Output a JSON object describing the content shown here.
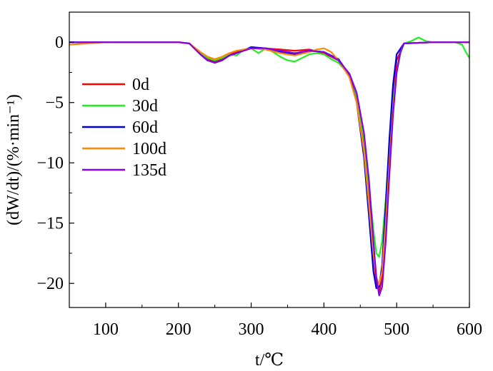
{
  "chart_data": {
    "type": "line",
    "xlabel": "t/℃",
    "ylabel": "(dW/dt)/(%·min⁻¹)",
    "xlim": [
      50,
      600
    ],
    "ylim": [
      -22,
      2.5
    ],
    "xticks": [
      100,
      200,
      300,
      400,
      500,
      600
    ],
    "yticks": [
      0,
      -5,
      -10,
      -15,
      -20
    ],
    "xtick_labels": [
      "100",
      "200",
      "300",
      "400",
      "500",
      "600"
    ],
    "ytick_labels": [
      "0",
      "−5",
      "−10",
      "−15",
      "−20"
    ],
    "grid": false,
    "legend_position": "center-left",
    "series": [
      {
        "name": "0d",
        "color": "#ff0000",
        "x": [
          50,
          100,
          150,
          200,
          215,
          230,
          240,
          250,
          260,
          270,
          280,
          300,
          320,
          340,
          360,
          380,
          400,
          420,
          435,
          445,
          455,
          462,
          468,
          472,
          476,
          480,
          485,
          490,
          495,
          500,
          510,
          550,
          600
        ],
        "y": [
          0,
          0,
          0,
          0,
          -0.1,
          -0.9,
          -1.4,
          -1.6,
          -1.4,
          -1.0,
          -0.8,
          -0.5,
          -0.5,
          -0.6,
          -0.7,
          -0.6,
          -0.9,
          -1.5,
          -2.7,
          -4.5,
          -8.5,
          -13,
          -17.5,
          -20,
          -20.7,
          -19.5,
          -15,
          -9.5,
          -4.5,
          -1.5,
          -0.1,
          0,
          0
        ]
      },
      {
        "name": "30d",
        "color": "#22ee22",
        "x": [
          50,
          100,
          150,
          200,
          215,
          230,
          240,
          250,
          260,
          270,
          280,
          290,
          300,
          310,
          320,
          330,
          340,
          350,
          360,
          370,
          380,
          390,
          400,
          410,
          420,
          435,
          445,
          455,
          462,
          468,
          472,
          476,
          480,
          485,
          490,
          495,
          500,
          505,
          510,
          520,
          530,
          540,
          550,
          580,
          590,
          595,
          600
        ],
        "y": [
          0,
          0,
          0,
          0,
          -0.1,
          -0.9,
          -1.3,
          -1.5,
          -1.3,
          -1.0,
          -1.1,
          -0.6,
          -0.5,
          -0.9,
          -0.5,
          -0.8,
          -1.2,
          -1.5,
          -1.6,
          -1.3,
          -1.0,
          -0.9,
          -1.0,
          -1.4,
          -1.7,
          -2.7,
          -4.5,
          -8,
          -12,
          -15.5,
          -17.5,
          -17.8,
          -16.5,
          -13,
          -8.5,
          -5,
          -2.5,
          -1,
          -0.1,
          0.1,
          0.4,
          0.1,
          0,
          0,
          -0.2,
          -0.8,
          -1.3
        ]
      },
      {
        "name": "60d",
        "color": "#0000dd",
        "x": [
          50,
          100,
          150,
          200,
          215,
          230,
          240,
          250,
          260,
          270,
          280,
          300,
          320,
          340,
          360,
          380,
          400,
          420,
          435,
          445,
          455,
          462,
          468,
          472,
          476,
          480,
          485,
          490,
          495,
          500,
          510,
          550,
          600
        ],
        "y": [
          0,
          0,
          0,
          0,
          -0.1,
          -1.0,
          -1.5,
          -1.7,
          -1.5,
          -1.1,
          -0.9,
          -0.4,
          -0.5,
          -0.8,
          -1.0,
          -0.7,
          -0.8,
          -1.4,
          -2.7,
          -5,
          -9.5,
          -14.5,
          -19,
          -20.4,
          -20.3,
          -18.5,
          -13.5,
          -8,
          -3.5,
          -1,
          -0.1,
          0,
          0
        ]
      },
      {
        "name": "100d",
        "color": "#ff8800",
        "x": [
          50,
          100,
          150,
          200,
          215,
          230,
          240,
          250,
          260,
          270,
          280,
          300,
          320,
          340,
          360,
          380,
          390,
          400,
          410,
          420,
          435,
          445,
          455,
          462,
          468,
          472,
          476,
          480,
          485,
          490,
          495,
          500,
          505,
          510,
          550,
          600
        ],
        "y": [
          -0.2,
          0,
          0,
          0,
          -0.1,
          -0.8,
          -1.2,
          -1.4,
          -1.2,
          -0.9,
          -0.7,
          -0.5,
          -0.6,
          -0.9,
          -1.1,
          -0.8,
          -0.6,
          -0.5,
          -0.8,
          -1.5,
          -2.9,
          -5,
          -9,
          -13.5,
          -17.5,
          -19.5,
          -20.1,
          -19,
          -15,
          -10,
          -5.5,
          -2.5,
          -0.8,
          -0.1,
          0,
          0
        ]
      },
      {
        "name": "135d",
        "color": "#8800ee",
        "x": [
          50,
          100,
          150,
          200,
          215,
          230,
          240,
          250,
          260,
          270,
          280,
          300,
          320,
          340,
          360,
          380,
          400,
          420,
          435,
          445,
          455,
          462,
          468,
          472,
          476,
          480,
          485,
          490,
          495,
          500,
          505,
          510,
          550,
          600
        ],
        "y": [
          0,
          0,
          0,
          0,
          -0.1,
          -1.0,
          -1.5,
          -1.7,
          -1.5,
          -1.1,
          -0.9,
          -0.5,
          -0.5,
          -0.7,
          -0.9,
          -0.7,
          -0.8,
          -1.5,
          -2.6,
          -4.2,
          -7.5,
          -11.5,
          -16.5,
          -19.5,
          -21.0,
          -20.3,
          -16.5,
          -11,
          -6,
          -2.5,
          -0.8,
          -0.1,
          0,
          0
        ]
      }
    ]
  }
}
